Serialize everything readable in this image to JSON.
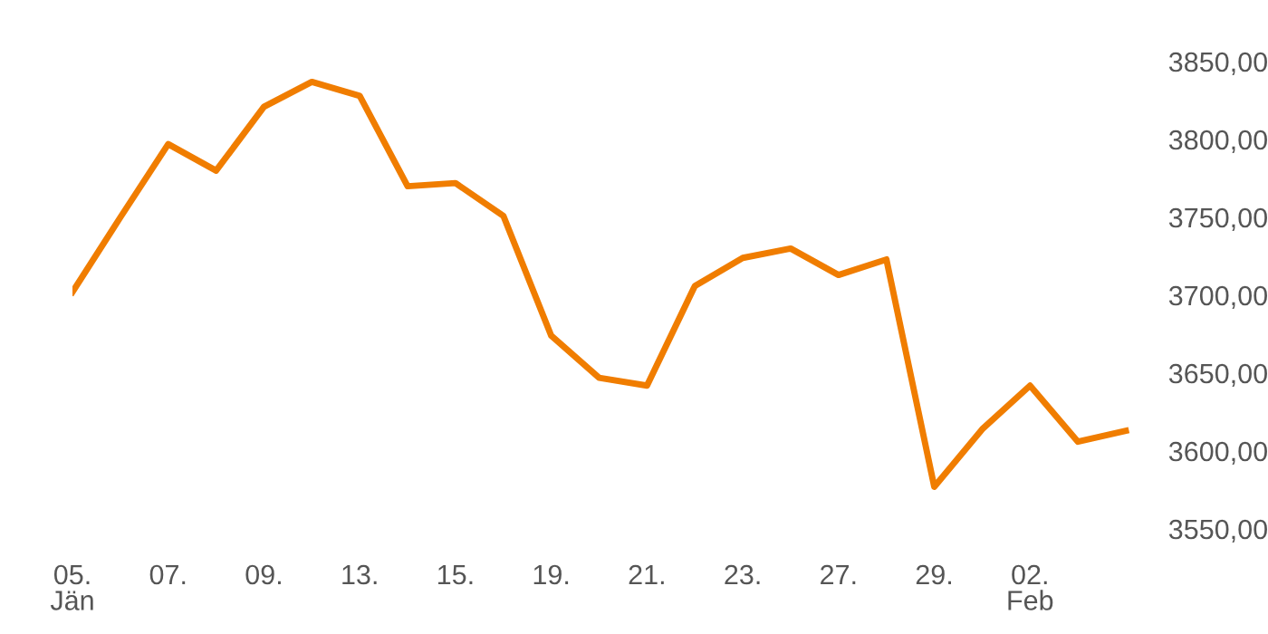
{
  "chart_data": {
    "type": "line",
    "categories": [
      "05.\nJän",
      null,
      "07.",
      null,
      "09.",
      null,
      "13.",
      null,
      "15.",
      null,
      "19.",
      null,
      "21.",
      null,
      "23.",
      null,
      "27.",
      null,
      "29.",
      null,
      "02.\nFeb",
      null,
      null
    ],
    "series": [
      {
        "color": "#f07d00",
        "values": [
          3702,
          3750,
          3797,
          3780,
          3821,
          3837,
          3828,
          3770,
          3772,
          3751,
          3674,
          3647,
          3642,
          3706,
          3724,
          3730,
          3713,
          3723,
          3577,
          3614,
          3642,
          3606,
          3613
        ]
      }
    ],
    "ylim": [
      3550,
      3850
    ],
    "yticks": [
      {
        "value": 3550,
        "label": "3550,00"
      },
      {
        "value": 3600,
        "label": "3600,00"
      },
      {
        "value": 3650,
        "label": "3650,00"
      },
      {
        "value": 3700,
        "label": "3700,00"
      },
      {
        "value": 3750,
        "label": "3750,00"
      },
      {
        "value": 3800,
        "label": "3800,00"
      },
      {
        "value": 3850,
        "label": "3850,00"
      }
    ],
    "grid": false,
    "marker": "none",
    "line_style": "solid"
  }
}
